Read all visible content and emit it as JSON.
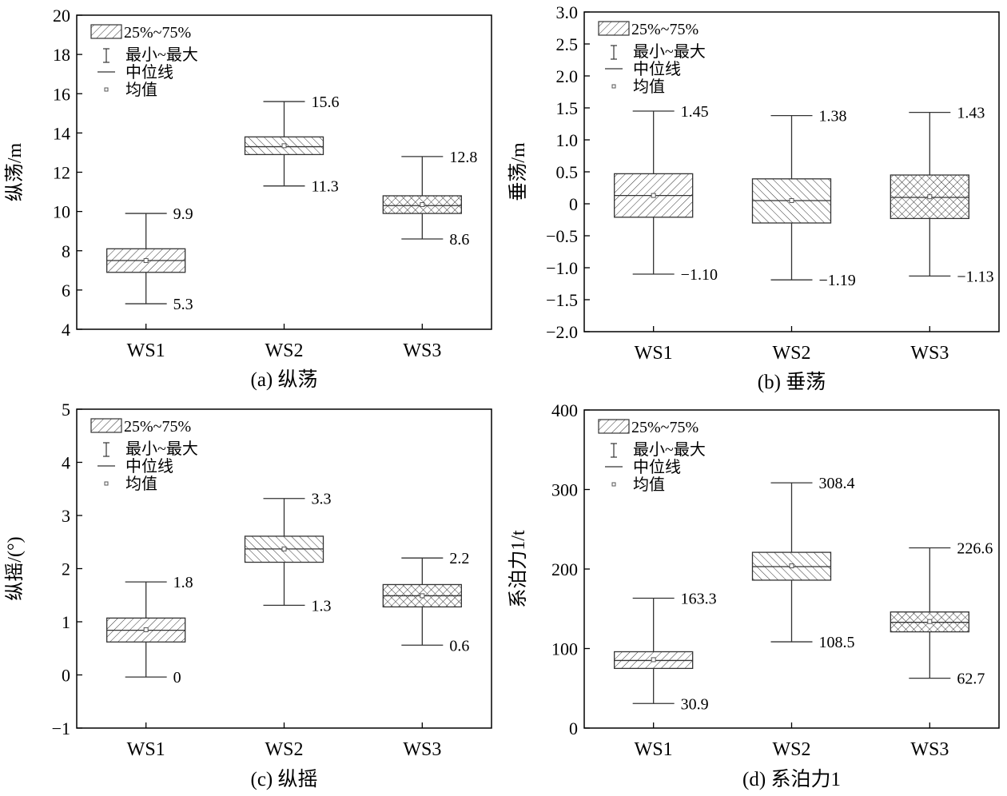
{
  "figure": {
    "chart_data": [
      {
        "type": "box",
        "caption": "(a) 纵荡",
        "ylabel": "纵荡/m",
        "ylim": [
          4,
          20
        ],
        "yticks": [
          "4",
          "6",
          "8",
          "10",
          "12",
          "14",
          "16",
          "18",
          "20"
        ],
        "categories": [
          "WS1",
          "WS2",
          "WS3"
        ],
        "boxes": [
          {
            "min": 5.3,
            "q1": 6.9,
            "median": 7.5,
            "mean": 7.5,
            "q3": 8.1,
            "max": 9.9,
            "max_label": "9.9",
            "min_label": "5.3",
            "pattern": "hatch1"
          },
          {
            "min": 11.3,
            "q1": 12.9,
            "median": 13.3,
            "mean": 13.35,
            "q3": 13.8,
            "max": 15.6,
            "max_label": "15.6",
            "min_label": "11.3",
            "pattern": "hatch2"
          },
          {
            "min": 8.6,
            "q1": 9.9,
            "median": 10.3,
            "mean": 10.35,
            "q3": 10.8,
            "max": 12.8,
            "max_label": "12.8",
            "min_label": "8.6",
            "pattern": "cross"
          }
        ],
        "legend": [
          "25%~75%",
          "最小~最大",
          "中位线",
          "均值"
        ]
      },
      {
        "type": "box",
        "caption": "(b) 垂荡",
        "ylabel": "垂荡/m",
        "ylim": [
          -2.0,
          3.0
        ],
        "yticks": [
          "−2.0",
          "−1.5",
          "−1.0",
          "−0.5",
          "0",
          "0.5",
          "1.0",
          "1.5",
          "2.0",
          "2.5",
          "3.0"
        ],
        "categories": [
          "WS1",
          "WS2",
          "WS3"
        ],
        "boxes": [
          {
            "min": -1.1,
            "q1": -0.21,
            "median": 0.13,
            "mean": 0.13,
            "q3": 0.47,
            "max": 1.45,
            "max_label": "1.45",
            "min_label": "−1.10",
            "pattern": "hatch1"
          },
          {
            "min": -1.19,
            "q1": -0.3,
            "median": 0.05,
            "mean": 0.05,
            "q3": 0.39,
            "max": 1.38,
            "max_label": "1.38",
            "min_label": "−1.19",
            "pattern": "hatch2"
          },
          {
            "min": -1.13,
            "q1": -0.23,
            "median": 0.1,
            "mean": 0.11,
            "q3": 0.45,
            "max": 1.43,
            "max_label": "1.43",
            "min_label": "−1.13",
            "pattern": "cross"
          }
        ],
        "legend": [
          "25%~75%",
          "最小~最大",
          "中位线",
          "均值"
        ]
      },
      {
        "type": "box",
        "caption": "(c) 纵摇",
        "ylabel": "纵摇/(°)",
        "ylim": [
          -1,
          5
        ],
        "yticks": [
          "−1",
          "0",
          "1",
          "2",
          "3",
          "4",
          "5"
        ],
        "categories": [
          "WS1",
          "WS2",
          "WS3"
        ],
        "boxes": [
          {
            "min": -0.04,
            "q1": 0.62,
            "median": 0.84,
            "mean": 0.85,
            "q3": 1.07,
            "max": 1.75,
            "max_label": "1.8",
            "min_label": "0",
            "pattern": "hatch1"
          },
          {
            "min": 1.31,
            "q1": 2.12,
            "median": 2.37,
            "mean": 2.37,
            "q3": 2.61,
            "max": 3.32,
            "max_label": "3.3",
            "min_label": "1.3",
            "pattern": "hatch2"
          },
          {
            "min": 0.56,
            "q1": 1.28,
            "median": 1.49,
            "mean": 1.49,
            "q3": 1.7,
            "max": 2.2,
            "max_label": "2.2",
            "min_label": "0.6",
            "pattern": "cross"
          }
        ],
        "legend": [
          "25%~75%",
          "最小~最大",
          "中位线",
          "均值"
        ]
      },
      {
        "type": "box",
        "caption": "(d) 系泊力1",
        "ylabel": "系泊力1/t",
        "ylim": [
          0,
          400
        ],
        "yticks": [
          "0",
          "100",
          "200",
          "300",
          "400"
        ],
        "categories": [
          "WS1",
          "WS2",
          "WS3"
        ],
        "boxes": [
          {
            "min": 30.9,
            "q1": 75,
            "median": 85,
            "mean": 86,
            "q3": 96,
            "max": 163.3,
            "max_label": "163.3",
            "min_label": "30.9",
            "pattern": "hatch1"
          },
          {
            "min": 108.5,
            "q1": 186,
            "median": 203,
            "mean": 204,
            "q3": 221,
            "max": 308.4,
            "max_label": "308.4",
            "min_label": "108.5",
            "pattern": "hatch2"
          },
          {
            "min": 62.7,
            "q1": 121,
            "median": 133,
            "mean": 134,
            "q3": 146,
            "max": 226.6,
            "max_label": "226.6",
            "min_label": "62.7",
            "pattern": "cross"
          }
        ],
        "legend": [
          "25%~75%",
          "最小~最大",
          "中位线",
          "均值"
        ]
      }
    ]
  }
}
